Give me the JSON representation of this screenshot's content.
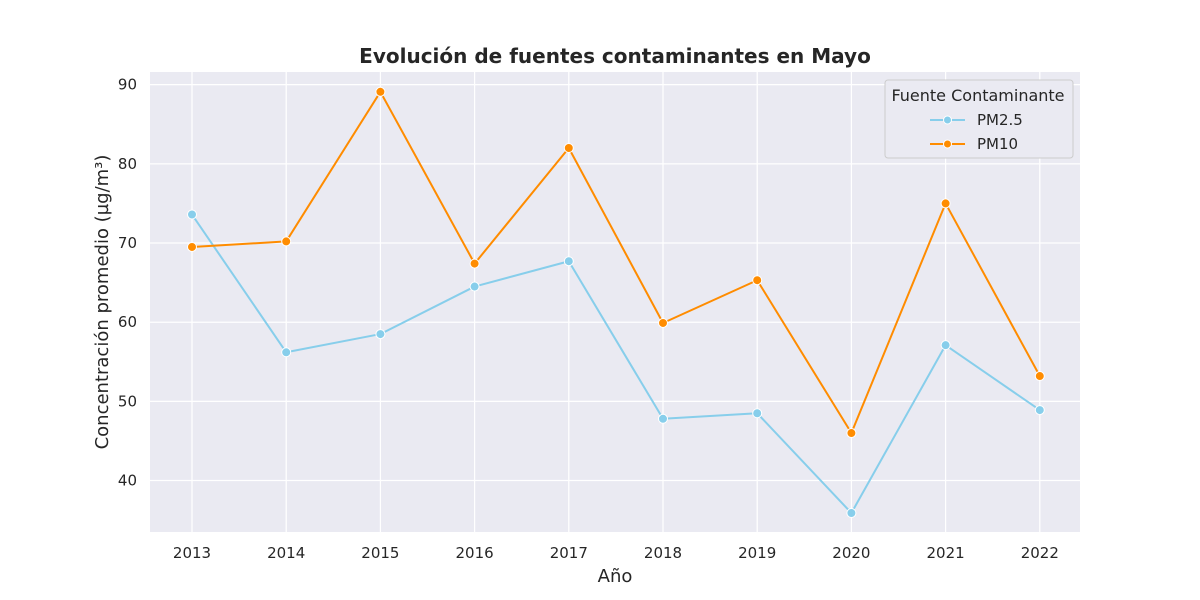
{
  "chart_data": {
    "type": "line",
    "title": "Evolución de fuentes contaminantes en Mayo",
    "xlabel": "Año",
    "ylabel": "Concentración promedio (µg/m³)",
    "x": [
      "2013",
      "2014",
      "2015",
      "2016",
      "2017",
      "2018",
      "2019",
      "2020",
      "2021",
      "2022"
    ],
    "yticks": [
      40,
      50,
      60,
      70,
      80,
      90
    ],
    "ylim": [
      33.5,
      91.6
    ],
    "grid": true,
    "legend": {
      "title": "Fuente Contaminante",
      "placement": "top-right"
    },
    "series": [
      {
        "name": "PM2.5",
        "color": "#87ceeb",
        "values": [
          73.6,
          56.2,
          58.5,
          64.5,
          67.7,
          47.8,
          48.5,
          35.9,
          57.1,
          48.9
        ]
      },
      {
        "name": "PM10",
        "color": "#ff8c00",
        "values": [
          69.5,
          70.2,
          89.1,
          67.4,
          82.0,
          59.9,
          65.3,
          46.0,
          75.0,
          53.2
        ]
      }
    ]
  }
}
